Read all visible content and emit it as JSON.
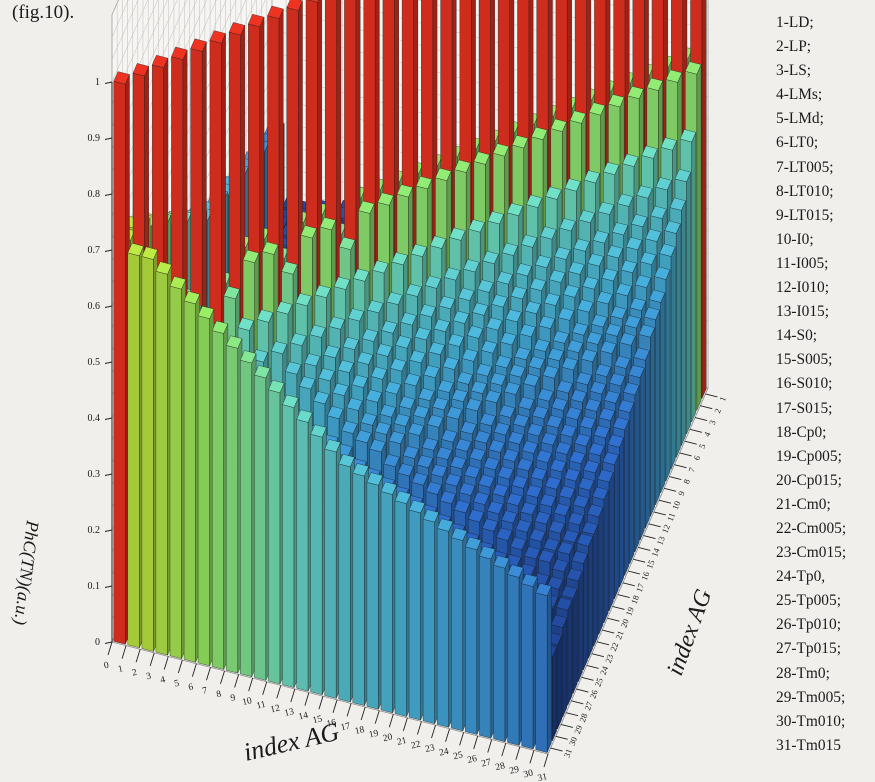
{
  "caption": "(fig.10).",
  "legend": {
    "items": [
      "1-LD;",
      "2-LP;",
      "3-LS;",
      "4-LMs;",
      "5-LMd;",
      "6-LT0;",
      "7-LT005;",
      "8-LT010;",
      "9-LT015;",
      "10-I0;",
      "11-I005;",
      "12-I010;",
      "13-I015;",
      "14-S0;",
      "15-S005;",
      "16-S010;",
      "17-S015;",
      "18-Cp0;",
      "19-Cp005;",
      "20-Cp015;",
      "21-Cm0;",
      "22-Cm005;",
      "23-Cm015;",
      "24-Tp0,",
      "25-Tp005;",
      "26-Tp010;",
      "27-Tp015;",
      "28-Tm0;",
      "29-Tm005;",
      "30-Tm010;",
      "31-Tm015"
    ]
  },
  "chart_data": {
    "type": "bar3d",
    "zlabel": "PhC(TN)(a.u.)",
    "xlabel": "index AG",
    "ylabel": "index AG",
    "x_ticks": [
      "0",
      "1",
      "2",
      "3",
      "4",
      "5",
      "6",
      "7",
      "8",
      "9",
      "10",
      "11",
      "12",
      "13",
      "14",
      "15",
      "16",
      "17",
      "18",
      "19",
      "20",
      "21",
      "22",
      "23",
      "24",
      "25",
      "26",
      "27",
      "28",
      "29",
      "30",
      "31"
    ],
    "y_ticks": [
      "1",
      "2",
      "3",
      "4",
      "5",
      "6",
      "7",
      "8",
      "9",
      "10",
      "11",
      "12",
      "13",
      "14",
      "15",
      "16",
      "17",
      "18",
      "19",
      "20",
      "21",
      "22",
      "23",
      "24",
      "25",
      "26",
      "27",
      "28",
      "29",
      "30",
      "31"
    ],
    "z_ticks": [
      "0",
      "0.1",
      "0.2",
      "0.3",
      "0.4",
      "0.5",
      "0.6",
      "0.7",
      "0.8",
      "0.9",
      "1"
    ],
    "zlim": [
      0,
      1
    ],
    "colormap": [
      "#1d3a8a",
      "#2f6ed0",
      "#49b6df",
      "#6fe0c8",
      "#9aee62",
      "#d6e830",
      "#f39a22",
      "#ef3322"
    ],
    "note_values": "heights estimated; symmetric matrix, diagonal = 1",
    "rows": [
      [
        1,
        0.7,
        0.7,
        0.68,
        0.66,
        0.64,
        0.62,
        0.6,
        0.58,
        0.56,
        0.54,
        0.52,
        0.5,
        0.48,
        0.46,
        0.44,
        0.42,
        0.41,
        0.4,
        0.39,
        0.38,
        0.37,
        0.36,
        0.35,
        0.34,
        0.33,
        0.32,
        0.31,
        0.3,
        0.29,
        0.28
      ],
      [
        0.7,
        1,
        0.5,
        0.45,
        0.4,
        0.38,
        0.36,
        0.34,
        0.32,
        0.3,
        0.3,
        0.29,
        0.28,
        0.27,
        0.26,
        0.25,
        0.24,
        0.23,
        0.22,
        0.21,
        0.2,
        0.2,
        0.19,
        0.18,
        0.18,
        0.17,
        0.17,
        0.16,
        0.16,
        0.15,
        0.15
      ],
      [
        0.7,
        0.5,
        1,
        0.6,
        0.45,
        0.42,
        0.4,
        0.38,
        0.36,
        0.34,
        0.32,
        0.3,
        0.29,
        0.28,
        0.27,
        0.26,
        0.25,
        0.24,
        0.23,
        0.22,
        0.21,
        0.2,
        0.2,
        0.19,
        0.18,
        0.18,
        0.17,
        0.17,
        0.16,
        0.16,
        0.15
      ],
      [
        0.68,
        0.45,
        0.6,
        1,
        0.55,
        0.45,
        0.42,
        0.4,
        0.38,
        0.36,
        0.34,
        0.33,
        0.32,
        0.3,
        0.29,
        0.28,
        0.27,
        0.26,
        0.25,
        0.24,
        0.23,
        0.22,
        0.21,
        0.2,
        0.2,
        0.19,
        0.18,
        0.18,
        0.17,
        0.17,
        0.16
      ],
      [
        0.66,
        0.4,
        0.45,
        0.55,
        1,
        0.5,
        0.45,
        0.42,
        0.4,
        0.38,
        0.36,
        0.34,
        0.33,
        0.32,
        0.3,
        0.29,
        0.28,
        0.27,
        0.26,
        0.25,
        0.24,
        0.23,
        0.22,
        0.21,
        0.2,
        0.2,
        0.19,
        0.18,
        0.18,
        0.17,
        0.17
      ],
      [
        0.64,
        0.38,
        0.42,
        0.45,
        0.5,
        1,
        0.55,
        0.5,
        0.45,
        0.4,
        0.38,
        0.36,
        0.34,
        0.33,
        0.32,
        0.3,
        0.29,
        0.28,
        0.27,
        0.26,
        0.25,
        0.24,
        0.23,
        0.22,
        0.21,
        0.2,
        0.2,
        0.19,
        0.18,
        0.18,
        0.17
      ],
      [
        0.62,
        0.36,
        0.4,
        0.42,
        0.45,
        0.55,
        1,
        0.6,
        0.5,
        0.45,
        0.42,
        0.4,
        0.38,
        0.36,
        0.34,
        0.33,
        0.32,
        0.3,
        0.29,
        0.28,
        0.27,
        0.26,
        0.25,
        0.24,
        0.23,
        0.22,
        0.21,
        0.2,
        0.2,
        0.19,
        0.18
      ],
      [
        0.6,
        0.34,
        0.38,
        0.4,
        0.42,
        0.5,
        0.6,
        1,
        0.6,
        0.5,
        0.45,
        0.42,
        0.4,
        0.38,
        0.36,
        0.34,
        0.33,
        0.32,
        0.3,
        0.29,
        0.28,
        0.27,
        0.26,
        0.25,
        0.24,
        0.23,
        0.22,
        0.21,
        0.2,
        0.2,
        0.19
      ],
      [
        0.58,
        0.32,
        0.36,
        0.38,
        0.4,
        0.45,
        0.5,
        0.6,
        1,
        0.55,
        0.5,
        0.45,
        0.42,
        0.4,
        0.38,
        0.36,
        0.34,
        0.33,
        0.32,
        0.3,
        0.29,
        0.28,
        0.27,
        0.26,
        0.25,
        0.24,
        0.23,
        0.22,
        0.21,
        0.2,
        0.2
      ],
      [
        0.56,
        0.3,
        0.34,
        0.36,
        0.38,
        0.4,
        0.45,
        0.5,
        0.55,
        1,
        0.6,
        0.5,
        0.45,
        0.42,
        0.4,
        0.38,
        0.36,
        0.34,
        0.33,
        0.32,
        0.3,
        0.29,
        0.28,
        0.27,
        0.26,
        0.25,
        0.24,
        0.23,
        0.22,
        0.21,
        0.2
      ],
      [
        0.54,
        0.3,
        0.32,
        0.34,
        0.36,
        0.38,
        0.42,
        0.45,
        0.5,
        0.6,
        1,
        0.6,
        0.5,
        0.45,
        0.42,
        0.4,
        0.38,
        0.36,
        0.34,
        0.33,
        0.32,
        0.3,
        0.29,
        0.28,
        0.27,
        0.26,
        0.25,
        0.24,
        0.23,
        0.22,
        0.21
      ],
      [
        0.52,
        0.29,
        0.3,
        0.33,
        0.34,
        0.36,
        0.4,
        0.42,
        0.45,
        0.5,
        0.6,
        1,
        0.55,
        0.5,
        0.45,
        0.42,
        0.4,
        0.38,
        0.36,
        0.34,
        0.33,
        0.32,
        0.3,
        0.29,
        0.28,
        0.27,
        0.26,
        0.25,
        0.24,
        0.23,
        0.22
      ],
      [
        0.5,
        0.28,
        0.29,
        0.32,
        0.33,
        0.34,
        0.38,
        0.4,
        0.42,
        0.45,
        0.5,
        0.55,
        1,
        0.6,
        0.5,
        0.45,
        0.42,
        0.4,
        0.38,
        0.36,
        0.34,
        0.33,
        0.32,
        0.3,
        0.29,
        0.28,
        0.27,
        0.26,
        0.25,
        0.24,
        0.23
      ],
      [
        0.48,
        0.27,
        0.28,
        0.3,
        0.32,
        0.33,
        0.36,
        0.38,
        0.4,
        0.42,
        0.45,
        0.5,
        0.6,
        1,
        0.6,
        0.5,
        0.45,
        0.42,
        0.4,
        0.38,
        0.36,
        0.34,
        0.33,
        0.32,
        0.3,
        0.29,
        0.28,
        0.27,
        0.26,
        0.25,
        0.24
      ],
      [
        0.46,
        0.26,
        0.27,
        0.29,
        0.3,
        0.32,
        0.34,
        0.36,
        0.38,
        0.4,
        0.42,
        0.45,
        0.5,
        0.6,
        1,
        0.6,
        0.5,
        0.45,
        0.42,
        0.4,
        0.38,
        0.36,
        0.34,
        0.33,
        0.32,
        0.3,
        0.29,
        0.28,
        0.27,
        0.26,
        0.25
      ],
      [
        0.44,
        0.25,
        0.26,
        0.28,
        0.29,
        0.3,
        0.33,
        0.34,
        0.36,
        0.38,
        0.4,
        0.42,
        0.45,
        0.5,
        0.6,
        1,
        0.6,
        0.5,
        0.45,
        0.42,
        0.4,
        0.38,
        0.36,
        0.34,
        0.33,
        0.32,
        0.3,
        0.29,
        0.28,
        0.27,
        0.26
      ],
      [
        0.42,
        0.24,
        0.25,
        0.27,
        0.28,
        0.29,
        0.32,
        0.33,
        0.34,
        0.36,
        0.38,
        0.4,
        0.42,
        0.45,
        0.5,
        0.6,
        1,
        0.6,
        0.5,
        0.45,
        0.42,
        0.4,
        0.38,
        0.36,
        0.34,
        0.33,
        0.32,
        0.3,
        0.29,
        0.28,
        0.27
      ],
      [
        0.41,
        0.23,
        0.24,
        0.26,
        0.27,
        0.28,
        0.3,
        0.32,
        0.33,
        0.34,
        0.36,
        0.38,
        0.4,
        0.42,
        0.45,
        0.5,
        0.6,
        1,
        0.6,
        0.5,
        0.45,
        0.42,
        0.4,
        0.38,
        0.36,
        0.34,
        0.33,
        0.32,
        0.3,
        0.29,
        0.28
      ],
      [
        0.4,
        0.22,
        0.23,
        0.25,
        0.26,
        0.27,
        0.29,
        0.3,
        0.32,
        0.33,
        0.34,
        0.36,
        0.38,
        0.4,
        0.42,
        0.45,
        0.5,
        0.6,
        1,
        0.6,
        0.5,
        0.45,
        0.42,
        0.4,
        0.38,
        0.36,
        0.34,
        0.33,
        0.32,
        0.3,
        0.29
      ],
      [
        0.39,
        0.21,
        0.22,
        0.24,
        0.25,
        0.26,
        0.28,
        0.29,
        0.3,
        0.32,
        0.33,
        0.34,
        0.36,
        0.38,
        0.4,
        0.42,
        0.45,
        0.5,
        0.6,
        1,
        0.6,
        0.5,
        0.45,
        0.42,
        0.4,
        0.38,
        0.36,
        0.34,
        0.33,
        0.32,
        0.3
      ],
      [
        0.38,
        0.2,
        0.21,
        0.23,
        0.24,
        0.25,
        0.27,
        0.28,
        0.29,
        0.3,
        0.32,
        0.33,
        0.34,
        0.36,
        0.38,
        0.4,
        0.42,
        0.45,
        0.5,
        0.6,
        1,
        0.6,
        0.5,
        0.45,
        0.42,
        0.4,
        0.38,
        0.36,
        0.34,
        0.33,
        0.32
      ],
      [
        0.37,
        0.2,
        0.2,
        0.22,
        0.23,
        0.24,
        0.26,
        0.27,
        0.28,
        0.29,
        0.3,
        0.32,
        0.33,
        0.34,
        0.36,
        0.38,
        0.4,
        0.42,
        0.45,
        0.5,
        0.6,
        1,
        0.6,
        0.5,
        0.45,
        0.42,
        0.4,
        0.38,
        0.36,
        0.34,
        0.33
      ],
      [
        0.36,
        0.19,
        0.2,
        0.21,
        0.22,
        0.23,
        0.25,
        0.26,
        0.27,
        0.28,
        0.29,
        0.3,
        0.32,
        0.33,
        0.34,
        0.36,
        0.38,
        0.4,
        0.42,
        0.45,
        0.5,
        0.6,
        1,
        0.6,
        0.5,
        0.45,
        0.42,
        0.4,
        0.38,
        0.36,
        0.34
      ],
      [
        0.35,
        0.18,
        0.19,
        0.2,
        0.21,
        0.22,
        0.24,
        0.25,
        0.26,
        0.27,
        0.28,
        0.29,
        0.3,
        0.32,
        0.33,
        0.34,
        0.36,
        0.38,
        0.4,
        0.42,
        0.45,
        0.5,
        0.6,
        1,
        0.6,
        0.5,
        0.45,
        0.42,
        0.4,
        0.38,
        0.36
      ],
      [
        0.34,
        0.18,
        0.18,
        0.2,
        0.2,
        0.21,
        0.23,
        0.24,
        0.25,
        0.26,
        0.27,
        0.28,
        0.29,
        0.3,
        0.32,
        0.33,
        0.34,
        0.36,
        0.38,
        0.4,
        0.42,
        0.45,
        0.5,
        0.6,
        1,
        0.6,
        0.5,
        0.45,
        0.42,
        0.4,
        0.38
      ],
      [
        0.33,
        0.17,
        0.18,
        0.19,
        0.2,
        0.2,
        0.22,
        0.23,
        0.24,
        0.25,
        0.26,
        0.27,
        0.28,
        0.29,
        0.3,
        0.32,
        0.33,
        0.34,
        0.36,
        0.38,
        0.4,
        0.42,
        0.45,
        0.5,
        0.6,
        1,
        0.6,
        0.5,
        0.45,
        0.42,
        0.4
      ],
      [
        0.32,
        0.17,
        0.17,
        0.18,
        0.19,
        0.2,
        0.21,
        0.22,
        0.23,
        0.24,
        0.25,
        0.26,
        0.27,
        0.28,
        0.29,
        0.3,
        0.32,
        0.33,
        0.34,
        0.36,
        0.38,
        0.4,
        0.42,
        0.45,
        0.5,
        0.6,
        1,
        0.6,
        0.5,
        0.45,
        0.42
      ],
      [
        0.31,
        0.16,
        0.17,
        0.18,
        0.18,
        0.19,
        0.2,
        0.21,
        0.22,
        0.23,
        0.24,
        0.25,
        0.26,
        0.27,
        0.28,
        0.29,
        0.3,
        0.32,
        0.33,
        0.34,
        0.36,
        0.38,
        0.4,
        0.42,
        0.45,
        0.5,
        0.6,
        1,
        0.6,
        0.5,
        0.45
      ],
      [
        0.3,
        0.16,
        0.16,
        0.17,
        0.18,
        0.18,
        0.2,
        0.2,
        0.21,
        0.22,
        0.23,
        0.24,
        0.25,
        0.26,
        0.27,
        0.28,
        0.29,
        0.3,
        0.32,
        0.33,
        0.34,
        0.36,
        0.38,
        0.4,
        0.42,
        0.45,
        0.5,
        0.6,
        1,
        0.6,
        0.5
      ],
      [
        0.29,
        0.15,
        0.16,
        0.17,
        0.17,
        0.18,
        0.19,
        0.2,
        0.2,
        0.21,
        0.22,
        0.23,
        0.24,
        0.25,
        0.26,
        0.27,
        0.28,
        0.29,
        0.3,
        0.32,
        0.33,
        0.34,
        0.36,
        0.38,
        0.4,
        0.42,
        0.45,
        0.5,
        0.6,
        1,
        0.6
      ],
      [
        0.28,
        0.15,
        0.15,
        0.16,
        0.17,
        0.17,
        0.18,
        0.19,
        0.2,
        0.2,
        0.21,
        0.22,
        0.23,
        0.24,
        0.25,
        0.26,
        0.27,
        0.28,
        0.29,
        0.3,
        0.32,
        0.33,
        0.34,
        0.36,
        0.38,
        0.4,
        0.42,
        0.45,
        0.5,
        0.6,
        1
      ]
    ]
  }
}
